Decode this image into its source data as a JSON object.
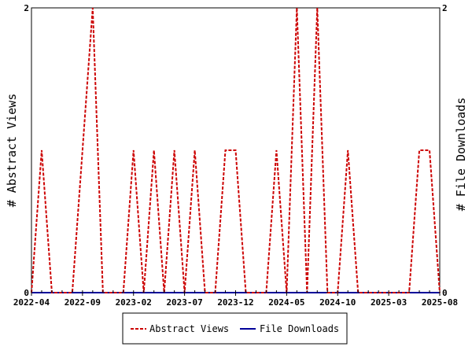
{
  "chart_data": {
    "type": "line",
    "ylabel_left": "# Abstract Views",
    "ylabel_right": "# File Downloads",
    "ylim": [
      0,
      2
    ],
    "y_ticks": [
      "0",
      "2"
    ],
    "x_ticks": [
      "2022-04",
      "2022-09",
      "2023-02",
      "2023-07",
      "2023-12",
      "2024-05",
      "2024-10",
      "2025-03",
      "2025-08"
    ],
    "grid": false,
    "legend_position": "bottom",
    "colors": {
      "views": "#cc0000",
      "downloads": "#000099"
    },
    "series": [
      {
        "name": "Abstract Views",
        "style": "dashed",
        "points": [
          [
            "2022-04",
            0
          ],
          [
            "2022-05",
            1
          ],
          [
            "2022-06",
            0
          ],
          [
            "2022-07",
            0
          ],
          [
            "2022-08",
            0
          ],
          [
            "2022-09",
            1
          ],
          [
            "2022-10",
            2
          ],
          [
            "2022-11",
            0
          ],
          [
            "2022-12",
            0
          ],
          [
            "2023-01",
            0
          ],
          [
            "2023-02",
            1
          ],
          [
            "2023-03",
            0
          ],
          [
            "2023-04",
            1
          ],
          [
            "2023-05",
            0
          ],
          [
            "2023-06",
            1
          ],
          [
            "2023-07",
            0
          ],
          [
            "2023-08",
            1
          ],
          [
            "2023-09",
            0
          ],
          [
            "2023-10",
            0
          ],
          [
            "2023-11",
            1
          ],
          [
            "2023-12",
            1
          ],
          [
            "2024-01",
            0
          ],
          [
            "2024-02",
            0
          ],
          [
            "2024-03",
            0
          ],
          [
            "2024-04",
            1
          ],
          [
            "2024-05",
            0
          ],
          [
            "2024-06",
            2
          ],
          [
            "2024-07",
            0
          ],
          [
            "2024-08",
            2
          ],
          [
            "2024-09",
            0
          ],
          [
            "2024-10",
            0
          ],
          [
            "2024-11",
            1
          ],
          [
            "2024-12",
            0
          ],
          [
            "2025-01",
            0
          ],
          [
            "2025-02",
            0
          ],
          [
            "2025-03",
            0
          ],
          [
            "2025-04",
            0
          ],
          [
            "2025-05",
            0
          ],
          [
            "2025-06",
            1
          ],
          [
            "2025-07",
            1
          ],
          [
            "2025-08",
            0
          ]
        ]
      },
      {
        "name": "File Downloads",
        "style": "solid",
        "points": [
          [
            "2022-04",
            0
          ],
          [
            "2022-05",
            0
          ],
          [
            "2022-06",
            0
          ],
          [
            "2022-07",
            0
          ],
          [
            "2022-08",
            0
          ],
          [
            "2022-09",
            0
          ],
          [
            "2022-10",
            0
          ],
          [
            "2022-11",
            0
          ],
          [
            "2022-12",
            0
          ],
          [
            "2023-01",
            0
          ],
          [
            "2023-02",
            0
          ],
          [
            "2023-03",
            0
          ],
          [
            "2023-04",
            0
          ],
          [
            "2023-05",
            0
          ],
          [
            "2023-06",
            0
          ],
          [
            "2023-07",
            0
          ],
          [
            "2023-08",
            0
          ],
          [
            "2023-09",
            0
          ],
          [
            "2023-10",
            0
          ],
          [
            "2023-11",
            0
          ],
          [
            "2023-12",
            0
          ],
          [
            "2024-01",
            0
          ],
          [
            "2024-02",
            0
          ],
          [
            "2024-03",
            0
          ],
          [
            "2024-04",
            0
          ],
          [
            "2024-05",
            0
          ],
          [
            "2024-06",
            0
          ],
          [
            "2024-07",
            0
          ],
          [
            "2024-08",
            0
          ],
          [
            "2024-09",
            0
          ],
          [
            "2024-10",
            0
          ],
          [
            "2024-11",
            0
          ],
          [
            "2024-12",
            0
          ],
          [
            "2025-01",
            0
          ],
          [
            "2025-02",
            0
          ],
          [
            "2025-03",
            0
          ],
          [
            "2025-04",
            0
          ],
          [
            "2025-05",
            0
          ],
          [
            "2025-06",
            0
          ],
          [
            "2025-07",
            0
          ],
          [
            "2025-08",
            0
          ]
        ]
      }
    ]
  }
}
